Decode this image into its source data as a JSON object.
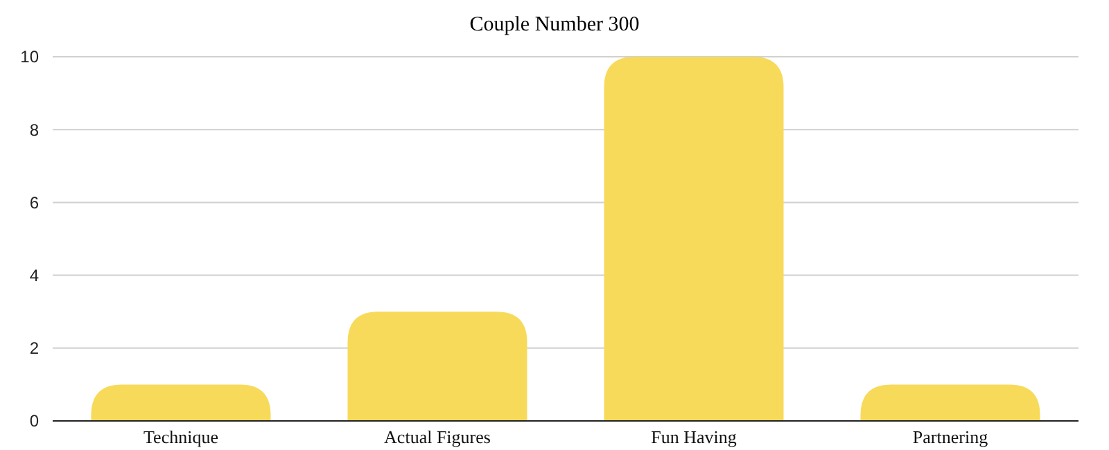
{
  "chart_data": {
    "type": "bar",
    "title": "Couple Number 300",
    "categories": [
      "Technique",
      "Actual Figures",
      "Fun Having",
      "Partnering"
    ],
    "values": [
      1,
      3,
      10,
      1
    ],
    "color": "#f8da5b",
    "ylim": [
      0,
      10
    ],
    "yticks": [
      0,
      2,
      4,
      6,
      8,
      10
    ],
    "grid": "y"
  }
}
